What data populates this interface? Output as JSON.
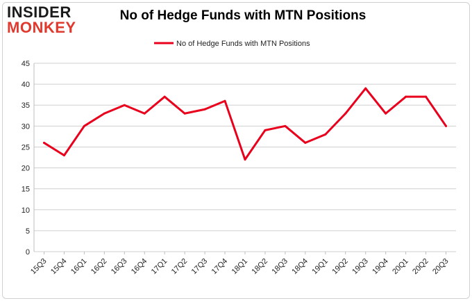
{
  "logo": {
    "line1": "INSIDER",
    "line2": "MONKEY"
  },
  "colors": {
    "series": "#e8001c",
    "grid": "#cfcfcf",
    "logo_red": "#e03a2f"
  },
  "chart_data": {
    "type": "line",
    "title": "No of Hedge Funds with MTN Positions",
    "xlabel": "",
    "ylabel": "",
    "legend_position": "top-center",
    "grid": true,
    "ylim": [
      0,
      45
    ],
    "yticks": [
      0,
      5,
      10,
      15,
      20,
      25,
      30,
      35,
      40,
      45
    ],
    "categories": [
      "15Q3",
      "15Q4",
      "16Q1",
      "16Q2",
      "16Q3",
      "16Q4",
      "17Q1",
      "17Q2",
      "17Q3",
      "17Q4",
      "18Q1",
      "18Q2",
      "18Q3",
      "18Q4",
      "19Q1",
      "19Q2",
      "19Q3",
      "19Q4",
      "20Q1",
      "20Q2",
      "20Q3"
    ],
    "series": [
      {
        "name": "No of Hedge Funds with MTN Positions",
        "values": [
          26,
          23,
          30,
          33,
          35,
          33,
          37,
          33,
          34,
          36,
          22,
          29,
          30,
          26,
          28,
          33,
          39,
          33,
          37,
          37,
          30
        ]
      }
    ]
  }
}
